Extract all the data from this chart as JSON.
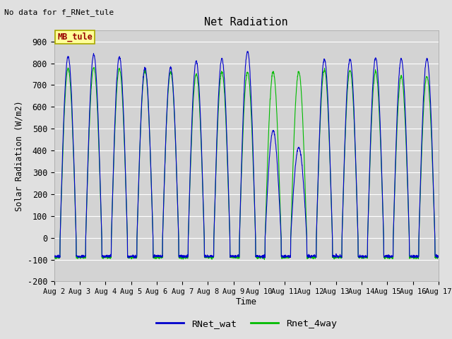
{
  "title": "Net Radiation",
  "xlabel": "Time",
  "ylabel": "Solar Radiation (W/m2)",
  "ylim": [
    -200,
    950
  ],
  "yticks": [
    -200,
    -100,
    0,
    100,
    200,
    300,
    400,
    500,
    600,
    700,
    800,
    900
  ],
  "no_data_text": "No data for f_RNet_tule",
  "annotation_text": "MB_tule",
  "num_days": 15,
  "start_day": 2,
  "color_blue": "#0000CC",
  "color_green": "#00BB00",
  "legend_labels": [
    "RNet_wat",
    "Rnet_4way"
  ],
  "fig_bg_color": "#E0E0E0",
  "plot_bg_color": "#D3D3D3",
  "grid_color": "#FFFFFF",
  "annotation_box_color": "#FFFF99",
  "annotation_text_color": "#990000",
  "annotation_box_edge_color": "#AAAA00"
}
